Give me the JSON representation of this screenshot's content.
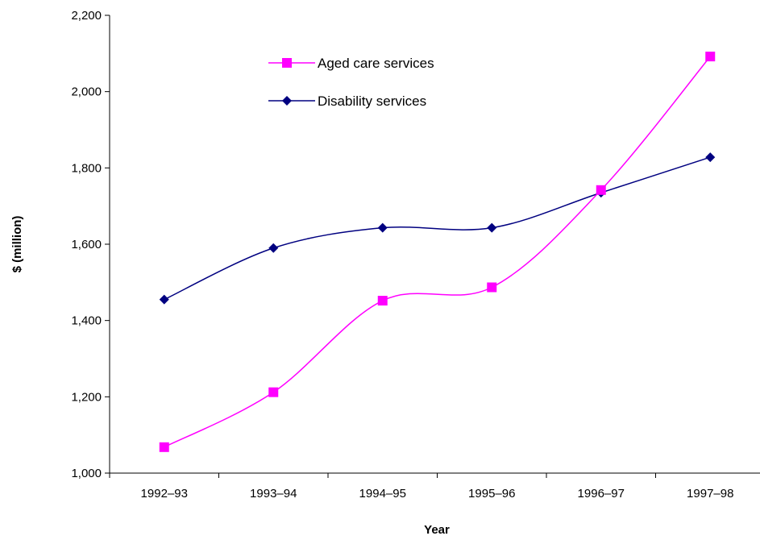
{
  "chart_data": {
    "type": "line",
    "title": "",
    "xlabel": "Year",
    "ylabel": "$ (million)",
    "categories": [
      "1992–93",
      "1993–94",
      "1994–95",
      "1995–96",
      "1996–97",
      "1997–98"
    ],
    "ylim": [
      1000,
      2200
    ],
    "yticks": [
      1000,
      1200,
      1400,
      1600,
      1800,
      2000,
      2200
    ],
    "ytick_labels": [
      "1,000",
      "1,200",
      "1,400",
      "1,600",
      "1,800",
      "2,000",
      "2,200"
    ],
    "grid": false,
    "legend_position": "top-center",
    "series": [
      {
        "name": "Aged care services",
        "values": [
          1068,
          1212,
          1452,
          1487,
          1742,
          2092
        ],
        "color": "#ff00ff",
        "marker": "square"
      },
      {
        "name": "Disability services",
        "values": [
          1455,
          1590,
          1643,
          1643,
          1735,
          1828
        ],
        "color": "#000080",
        "marker": "diamond"
      }
    ]
  }
}
